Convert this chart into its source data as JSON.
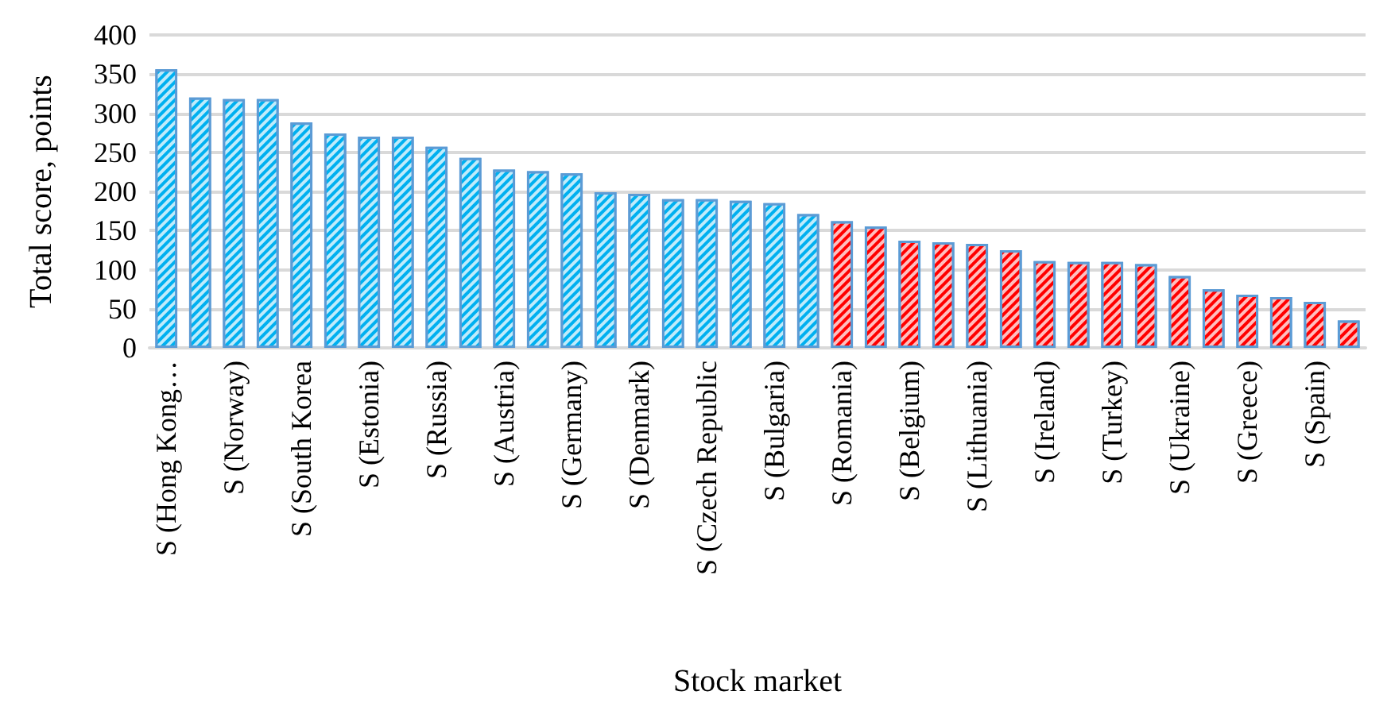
{
  "chart_data": {
    "type": "bar",
    "xlabel": "Stock market",
    "ylabel": "Total score, points",
    "categories": [
      "S (Hong Kong…",
      null,
      "S (Norway)",
      null,
      "S (South Korea",
      null,
      "S (Estonia)",
      null,
      "S (Russia)",
      null,
      "S (Austria)",
      null,
      "S (Germany)",
      null,
      "S (Denmark)",
      null,
      "S (Czech Republic",
      null,
      "S (Bulgaria)",
      null,
      "S (Romania)",
      null,
      "S (Belgium)",
      null,
      "S (Lithuania)",
      null,
      "S (Ireland)",
      null,
      "S (Turkey)",
      null,
      "S (Ukraine)",
      null,
      "S (Greece)",
      null,
      "S (Spain)",
      null
    ],
    "values": [
      356,
      320,
      318,
      318,
      288,
      274,
      270,
      270,
      257,
      243,
      228,
      226,
      223,
      199,
      197,
      190,
      190,
      188,
      185,
      171,
      162,
      155,
      137,
      135,
      133,
      125,
      111,
      110,
      110,
      107,
      92,
      75,
      68,
      65,
      59,
      35
    ],
    "colors": [
      "#00b0f0",
      "#00b0f0",
      "#00b0f0",
      "#00b0f0",
      "#00b0f0",
      "#00b0f0",
      "#00b0f0",
      "#00b0f0",
      "#00b0f0",
      "#00b0f0",
      "#00b0f0",
      "#00b0f0",
      "#00b0f0",
      "#00b0f0",
      "#00b0f0",
      "#00b0f0",
      "#00b0f0",
      "#00b0f0",
      "#00b0f0",
      "#00b0f0",
      "#ff0000",
      "#ff0000",
      "#ff0000",
      "#ff0000",
      "#ff0000",
      "#ff0000",
      "#ff0000",
      "#ff0000",
      "#ff0000",
      "#ff0000",
      "#ff0000",
      "#ff0000",
      "#ff0000",
      "#ff0000",
      "#ff0000",
      "#ff0000"
    ],
    "ylim": [
      0,
      400
    ],
    "yticks": [
      0,
      50,
      100,
      150,
      200,
      250,
      300,
      350,
      400
    ],
    "grid": "y"
  }
}
